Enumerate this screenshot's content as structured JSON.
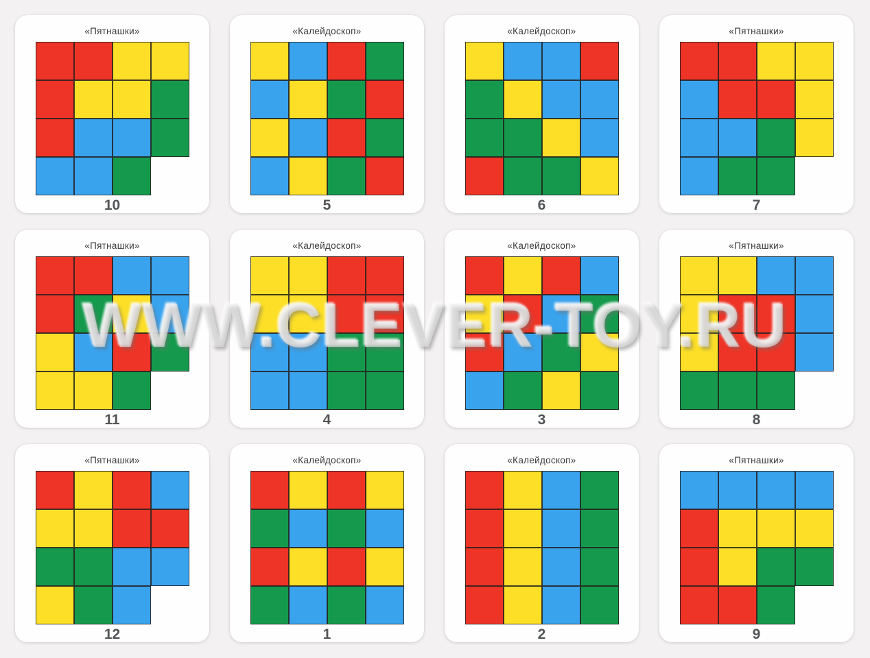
{
  "page": {
    "watermark": "WWW.CLEVER-TOY.RU"
  },
  "colors": {
    "red": "#ee3426",
    "yellow": "#fcdf26",
    "blue": "#3aa3ee",
    "green": "#159a4d",
    "card_bg": "#fefefe",
    "page_bg": "#f3f1f1",
    "grid_line": "#23201e",
    "title_text": "#3c3a39",
    "number_text": "#525456"
  },
  "cards": [
    {
      "title": "«Пятнашки»",
      "number": "10",
      "grid": [
        [
          "red",
          "red",
          "yellow",
          "yellow"
        ],
        [
          "red",
          "yellow",
          "yellow",
          "green"
        ],
        [
          "red",
          "blue",
          "blue",
          "green"
        ],
        [
          "blue",
          "blue",
          "green",
          "empty"
        ]
      ]
    },
    {
      "title": "«Калейдоскоп»",
      "number": "5",
      "grid": [
        [
          "yellow",
          "blue",
          "red",
          "green"
        ],
        [
          "blue",
          "yellow",
          "green",
          "red"
        ],
        [
          "yellow",
          "blue",
          "red",
          "green"
        ],
        [
          "blue",
          "yellow",
          "green",
          "red"
        ]
      ]
    },
    {
      "title": "«Калейдоскоп»",
      "number": "6",
      "grid": [
        [
          "yellow",
          "blue",
          "blue",
          "red"
        ],
        [
          "green",
          "yellow",
          "blue",
          "blue"
        ],
        [
          "green",
          "green",
          "yellow",
          "blue"
        ],
        [
          "red",
          "green",
          "green",
          "yellow"
        ]
      ]
    },
    {
      "title": "«Пятнашки»",
      "number": "7",
      "grid": [
        [
          "red",
          "red",
          "yellow",
          "yellow"
        ],
        [
          "blue",
          "red",
          "red",
          "yellow"
        ],
        [
          "blue",
          "blue",
          "green",
          "yellow"
        ],
        [
          "blue",
          "green",
          "green",
          "empty"
        ]
      ]
    },
    {
      "title": "«Пятнашки»",
      "number": "11",
      "grid": [
        [
          "red",
          "red",
          "blue",
          "blue"
        ],
        [
          "red",
          "green",
          "yellow",
          "blue"
        ],
        [
          "yellow",
          "blue",
          "red",
          "green"
        ],
        [
          "yellow",
          "yellow",
          "green",
          "empty"
        ]
      ]
    },
    {
      "title": "«Калейдоскоп»",
      "number": "4",
      "grid": [
        [
          "yellow",
          "yellow",
          "red",
          "red"
        ],
        [
          "yellow",
          "yellow",
          "red",
          "red"
        ],
        [
          "blue",
          "blue",
          "green",
          "green"
        ],
        [
          "blue",
          "blue",
          "green",
          "green"
        ]
      ]
    },
    {
      "title": "«Калейдоскоп»",
      "number": "3",
      "grid": [
        [
          "red",
          "yellow",
          "red",
          "blue"
        ],
        [
          "yellow",
          "red",
          "blue",
          "green"
        ],
        [
          "red",
          "blue",
          "green",
          "yellow"
        ],
        [
          "blue",
          "green",
          "yellow",
          "green"
        ]
      ]
    },
    {
      "title": "«Пятнашки»",
      "number": "8",
      "grid": [
        [
          "yellow",
          "yellow",
          "blue",
          "blue"
        ],
        [
          "yellow",
          "red",
          "red",
          "blue"
        ],
        [
          "yellow",
          "red",
          "red",
          "blue"
        ],
        [
          "green",
          "green",
          "green",
          "empty"
        ]
      ]
    },
    {
      "title": "«Пятнашки»",
      "number": "12",
      "grid": [
        [
          "red",
          "yellow",
          "red",
          "blue"
        ],
        [
          "yellow",
          "yellow",
          "red",
          "red"
        ],
        [
          "green",
          "green",
          "blue",
          "blue"
        ],
        [
          "yellow",
          "green",
          "blue",
          "empty"
        ]
      ]
    },
    {
      "title": "«Калейдоскоп»",
      "number": "1",
      "grid": [
        [
          "red",
          "yellow",
          "red",
          "yellow"
        ],
        [
          "green",
          "blue",
          "green",
          "blue"
        ],
        [
          "red",
          "yellow",
          "red",
          "yellow"
        ],
        [
          "green",
          "blue",
          "green",
          "blue"
        ]
      ]
    },
    {
      "title": "«Калейдоскоп»",
      "number": "2",
      "grid": [
        [
          "red",
          "yellow",
          "blue",
          "green"
        ],
        [
          "red",
          "yellow",
          "blue",
          "green"
        ],
        [
          "red",
          "yellow",
          "blue",
          "green"
        ],
        [
          "red",
          "yellow",
          "blue",
          "green"
        ]
      ]
    },
    {
      "title": "«Пятнашки»",
      "number": "9",
      "grid": [
        [
          "blue",
          "blue",
          "blue",
          "blue"
        ],
        [
          "red",
          "yellow",
          "yellow",
          "yellow"
        ],
        [
          "red",
          "yellow",
          "green",
          "green"
        ],
        [
          "red",
          "red",
          "green",
          "empty"
        ]
      ]
    }
  ]
}
